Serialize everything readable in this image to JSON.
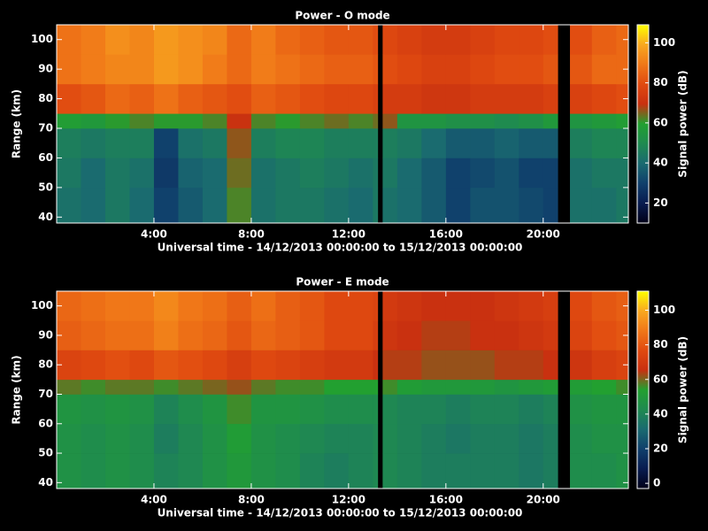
{
  "chart_data": [
    {
      "type": "heatmap",
      "title": "Power - O mode",
      "x_label": "Universal time - 14/12/2013 00:00:00 to 15/12/2013 00:00:00",
      "y_label": "Range (km)",
      "colorbar_label": "Signal power (dB)",
      "x_edges": [
        0,
        1,
        2,
        3,
        4,
        5,
        6,
        7,
        8,
        9,
        10,
        11,
        12,
        13,
        13.2,
        13.4,
        14,
        15,
        16,
        17,
        18,
        19,
        20,
        20.6,
        21.1,
        22,
        23,
        23.5
      ],
      "y_edges": [
        38,
        50,
        60,
        70,
        75,
        85,
        95,
        105
      ],
      "z": [
        [
          42,
          40,
          44,
          40,
          30,
          36,
          40,
          62,
          42,
          44,
          44,
          42,
          40,
          44,
          null,
          42,
          40,
          36,
          30,
          34,
          34,
          32,
          30,
          null,
          42,
          42,
          44
        ],
        [
          44,
          40,
          44,
          42,
          28,
          38,
          40,
          64,
          42,
          44,
          46,
          44,
          42,
          44,
          null,
          44,
          40,
          36,
          30,
          32,
          34,
          30,
          30,
          null,
          42,
          44,
          44
        ],
        [
          46,
          44,
          46,
          46,
          30,
          42,
          44,
          66,
          46,
          48,
          48,
          46,
          46,
          46,
          null,
          46,
          44,
          40,
          36,
          36,
          38,
          36,
          36,
          null,
          46,
          48,
          48
        ],
        [
          58,
          56,
          60,
          62,
          60,
          60,
          62,
          70,
          62,
          60,
          62,
          64,
          62,
          64,
          null,
          66,
          54,
          54,
          52,
          52,
          50,
          52,
          56,
          null,
          54,
          56,
          58
        ],
        [
          80,
          82,
          86,
          84,
          88,
          84,
          82,
          80,
          84,
          82,
          80,
          78,
          78,
          76,
          null,
          74,
          74,
          72,
          72,
          74,
          74,
          74,
          76,
          null,
          76,
          78,
          80
        ],
        [
          88,
          90,
          92,
          92,
          96,
          94,
          90,
          86,
          90,
          88,
          86,
          84,
          84,
          82,
          null,
          80,
          78,
          76,
          76,
          78,
          80,
          80,
          82,
          null,
          82,
          86,
          86
        ],
        [
          88,
          90,
          94,
          92,
          96,
          94,
          92,
          86,
          90,
          86,
          84,
          82,
          82,
          80,
          null,
          78,
          76,
          74,
          74,
          76,
          78,
          78,
          80,
          null,
          80,
          84,
          86
        ]
      ],
      "xlim": [
        0,
        23.5
      ],
      "ylim": [
        38,
        105
      ],
      "xticks": [
        {
          "value": 4,
          "label": "4:00"
        },
        {
          "value": 8,
          "label": "8:00"
        },
        {
          "value": 12,
          "label": "12:00"
        },
        {
          "value": 16,
          "label": "16:00"
        },
        {
          "value": 20,
          "label": "20:00"
        }
      ],
      "yticks": [
        40,
        50,
        60,
        70,
        80,
        90,
        100
      ],
      "zlim": [
        10,
        109
      ],
      "zticks": [
        20,
        40,
        60,
        80,
        100
      ],
      "colorscale": [
        "#000018",
        "#081c50",
        "#10406c",
        "#1a6a70",
        "#1f8a50",
        "#22a030",
        "#c83010",
        "#e04a10",
        "#f07818",
        "#f8a820",
        "#ffff00"
      ]
    },
    {
      "type": "heatmap",
      "title": "Power - E mode",
      "x_label": "Universal time - 14/12/2013 00:00:00 to 15/12/2013 00:00:00",
      "y_label": "Range (km)",
      "colorbar_label": "Signal power (dB)",
      "x_edges": [
        0,
        1,
        2,
        3,
        4,
        5,
        6,
        7,
        8,
        9,
        10,
        11,
        12,
        13,
        13.2,
        13.4,
        14,
        15,
        16,
        17,
        18,
        19,
        20,
        20.6,
        21.1,
        22,
        23,
        23.5
      ],
      "y_edges": [
        38,
        50,
        60,
        70,
        75,
        85,
        95,
        105
      ],
      "z": [
        [
          46,
          44,
          46,
          44,
          40,
          42,
          46,
          50,
          46,
          44,
          40,
          38,
          40,
          42,
          null,
          42,
          40,
          38,
          38,
          38,
          38,
          36,
          38,
          null,
          44,
          44,
          46
        ],
        [
          46,
          44,
          46,
          44,
          38,
          42,
          46,
          52,
          46,
          44,
          42,
          40,
          40,
          42,
          null,
          42,
          40,
          38,
          36,
          38,
          38,
          36,
          38,
          null,
          44,
          46,
          46
        ],
        [
          48,
          46,
          48,
          46,
          40,
          44,
          48,
          56,
          48,
          48,
          46,
          44,
          44,
          44,
          null,
          42,
          40,
          40,
          38,
          40,
          40,
          38,
          40,
          null,
          46,
          48,
          48
        ],
        [
          58,
          56,
          58,
          58,
          56,
          58,
          60,
          62,
          58,
          56,
          56,
          54,
          54,
          54,
          null,
          56,
          52,
          50,
          50,
          50,
          48,
          50,
          52,
          null,
          52,
          54,
          56
        ],
        [
          74,
          76,
          78,
          76,
          80,
          78,
          76,
          72,
          76,
          74,
          72,
          70,
          70,
          66,
          null,
          64,
          64,
          62,
          62,
          62,
          64,
          64,
          66,
          null,
          68,
          72,
          74
        ],
        [
          82,
          84,
          86,
          86,
          90,
          86,
          84,
          80,
          84,
          82,
          80,
          76,
          76,
          72,
          null,
          68,
          66,
          64,
          64,
          66,
          66,
          68,
          70,
          null,
          74,
          78,
          80
        ],
        [
          84,
          86,
          88,
          88,
          92,
          88,
          86,
          82,
          86,
          82,
          80,
          76,
          76,
          74,
          null,
          70,
          68,
          66,
          66,
          66,
          68,
          70,
          72,
          null,
          76,
          80,
          82
        ]
      ],
      "xlim": [
        0,
        23.5
      ],
      "ylim": [
        38,
        105
      ],
      "xticks": [
        {
          "value": 4,
          "label": "4:00"
        },
        {
          "value": 8,
          "label": "8:00"
        },
        {
          "value": 12,
          "label": "12:00"
        },
        {
          "value": 16,
          "label": "16:00"
        },
        {
          "value": 20,
          "label": "20:00"
        }
      ],
      "yticks": [
        40,
        50,
        60,
        70,
        80,
        90,
        100
      ],
      "zlim": [
        -3,
        111
      ],
      "zticks": [
        0,
        20,
        40,
        60,
        80,
        100
      ],
      "colorscale": [
        "#000018",
        "#081c50",
        "#10406c",
        "#1a6a70",
        "#1f8a50",
        "#22a030",
        "#c83010",
        "#e04a10",
        "#f07818",
        "#f8a820",
        "#ffff00"
      ]
    }
  ]
}
